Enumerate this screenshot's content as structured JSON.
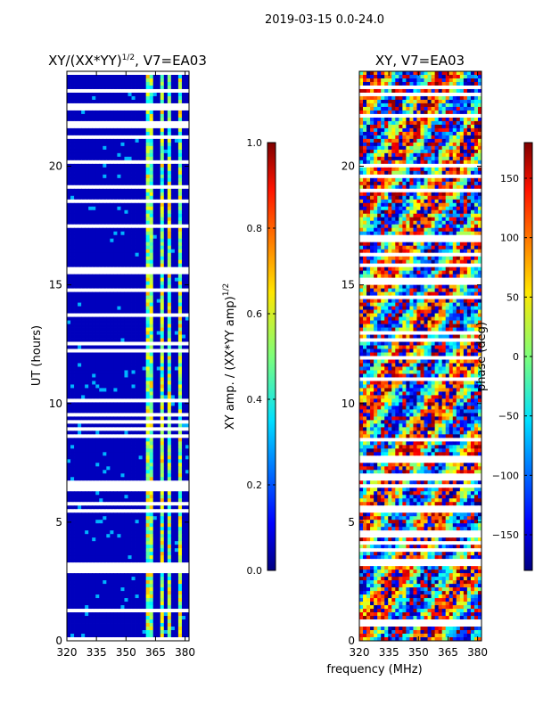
{
  "suptitle": "2019-03-15 0.0-24.0",
  "shared_xlabel": "frequency (MHz)",
  "chart_data": [
    {
      "type": "heatmap",
      "title": "XY/(XX*YY)",
      "title_sup": "1/2",
      "title_suffix": ", V7=EA03",
      "ylabel": "UT (hours)",
      "xlim": [
        320,
        382
      ],
      "ylim": [
        0,
        24
      ],
      "xticks": [
        320,
        335,
        350,
        365,
        380
      ],
      "yticks": [
        0,
        5,
        10,
        15,
        20
      ],
      "colorbar": {
        "label": "XY amp. / (XX*YY amp)",
        "label_sup": "1/2",
        "range": [
          0.0,
          1.0
        ],
        "ticks": [
          0.0,
          0.2,
          0.4,
          0.6,
          0.8,
          1.0
        ],
        "tick_labels": [
          "0.0",
          "0.2",
          "0.4",
          "0.6",
          "0.8",
          "1.0"
        ],
        "colormap": "jet"
      }
    },
    {
      "type": "heatmap",
      "title": "XY, V7=EA03",
      "xlim": [
        320,
        382
      ],
      "ylim": [
        0,
        24
      ],
      "xticks": [
        320,
        335,
        350,
        365,
        380
      ],
      "yticks": [
        0,
        5,
        10,
        15,
        20
      ],
      "colorbar": {
        "label": "phase (deg)",
        "range": [
          -180,
          180
        ],
        "ticks": [
          -150,
          -100,
          -50,
          0,
          50,
          100,
          150
        ],
        "tick_labels": [
          "−150",
          "−100",
          "−50",
          "0",
          "50",
          "100",
          "150"
        ],
        "colormap": "jet"
      }
    }
  ]
}
